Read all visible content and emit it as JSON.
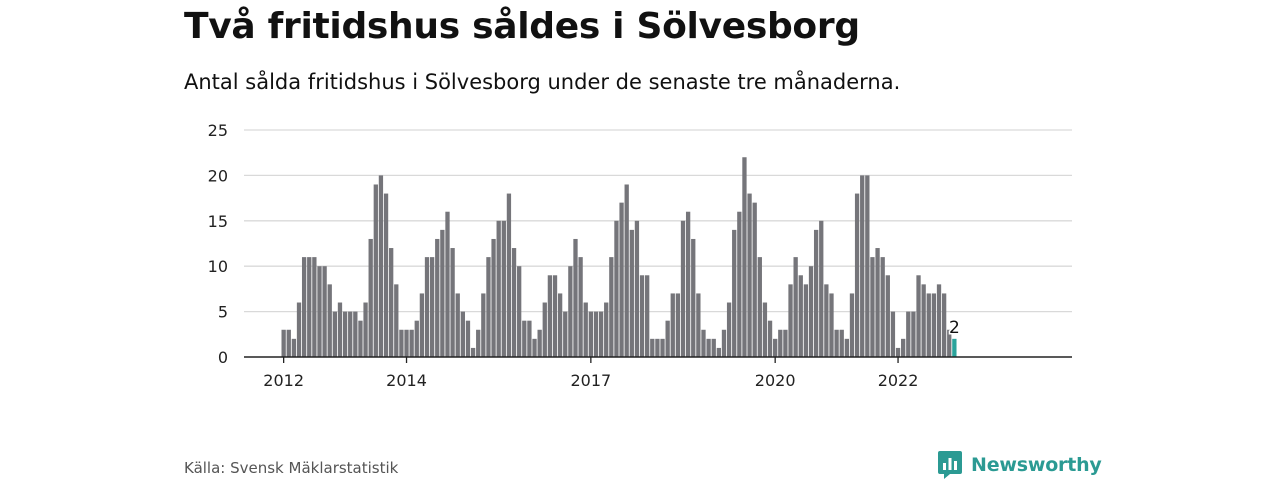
{
  "title": "Två fritidshus såldes i Sölvesborg",
  "subtitle": "Antal sålda fritidshus i Sölvesborg under de senaste tre månaderna.",
  "source": "Källa: Svensk Mäklarstatistik",
  "brand": "Newsworthy",
  "colors": {
    "bar": "#75757a",
    "highlight": "#2aa39b",
    "grid": "#d9d9d9",
    "axis": "#222222",
    "brand": "#2b9a93"
  },
  "chart_data": {
    "type": "bar",
    "ylim": [
      0,
      25
    ],
    "yticks": [
      0,
      5,
      10,
      15,
      20,
      25
    ],
    "xtick_labels": [
      {
        "label": "2012",
        "index": 0
      },
      {
        "label": "2014",
        "index": 24
      },
      {
        "label": "2017",
        "index": 60
      },
      {
        "label": "2020",
        "index": 96
      },
      {
        "label": "2022",
        "index": 120
      }
    ],
    "grid": true,
    "values": [
      3,
      3,
      2,
      6,
      11,
      11,
      11,
      10,
      10,
      8,
      5,
      6,
      5,
      5,
      5,
      4,
      6,
      13,
      19,
      20,
      18,
      12,
      8,
      3,
      3,
      3,
      4,
      7,
      11,
      11,
      13,
      14,
      16,
      12,
      7,
      5,
      4,
      1,
      3,
      7,
      11,
      13,
      15,
      15,
      18,
      12,
      10,
      4,
      4,
      2,
      3,
      6,
      9,
      9,
      7,
      5,
      10,
      13,
      11,
      6,
      5,
      5,
      5,
      6,
      11,
      15,
      17,
      19,
      14,
      15,
      9,
      9,
      2,
      2,
      2,
      4,
      7,
      7,
      15,
      16,
      13,
      7,
      3,
      2,
      2,
      1,
      3,
      6,
      14,
      16,
      22,
      18,
      17,
      11,
      6,
      4,
      2,
      3,
      3,
      8,
      11,
      9,
      8,
      10,
      14,
      15,
      8,
      7,
      3,
      3,
      2,
      7,
      18,
      20,
      20,
      11,
      12,
      11,
      9,
      5,
      1,
      2,
      5,
      5,
      9,
      8,
      7,
      7,
      8,
      7,
      3,
      2
    ],
    "highlight_label": "2"
  }
}
